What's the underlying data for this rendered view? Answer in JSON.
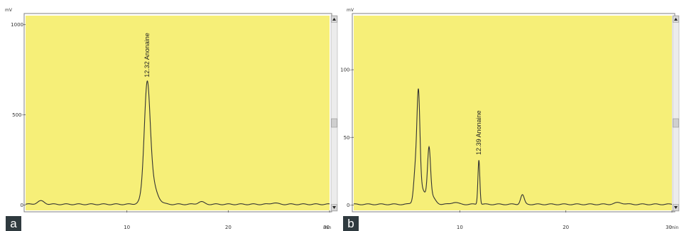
{
  "chart_data": [
    {
      "type": "line",
      "panel_label": "a",
      "y_unit": "mV",
      "x_unit": "min",
      "xlim": [
        0,
        30
      ],
      "ylim": [
        -30,
        1050
      ],
      "x_ticks": [
        {
          "value": 10,
          "label": "10"
        },
        {
          "value": 20,
          "label": "20"
        },
        {
          "value": 30,
          "label": "30"
        }
      ],
      "y_ticks": [
        {
          "value": 0,
          "label": "0"
        },
        {
          "value": 500,
          "label": "500-"
        },
        {
          "value": 1000,
          "label": "1000"
        }
      ],
      "baseline": 4,
      "peaks": [
        {
          "t": 1.5,
          "h": 18,
          "w": 0.35
        },
        {
          "t": 12.0,
          "h": 565,
          "w": 0.28
        },
        {
          "t": 12.3,
          "h": 140,
          "w": 0.55
        },
        {
          "t": 17.3,
          "h": 14,
          "w": 0.3
        },
        {
          "t": 24.5,
          "h": 8,
          "w": 0.3
        }
      ],
      "annotations": [
        {
          "x": 12.0,
          "y": 700,
          "text": "12.32 Anonaine"
        }
      ],
      "color": "#333333",
      "background": "#f6ef78"
    },
    {
      "type": "line",
      "panel_label": "b",
      "y_unit": "mV",
      "x_unit": "min",
      "xlim": [
        0,
        30
      ],
      "ylim": [
        -4,
        140
      ],
      "x_ticks": [
        {
          "value": 10,
          "label": "10"
        },
        {
          "value": 20,
          "label": "20"
        },
        {
          "value": 30,
          "label": "30"
        }
      ],
      "y_ticks": [
        {
          "value": 0,
          "label": "0-"
        },
        {
          "value": 50,
          "label": "50-"
        },
        {
          "value": 100,
          "label": "100-"
        }
      ],
      "baseline": 0.5,
      "peaks": [
        {
          "t": 5.8,
          "h": 20,
          "w": 0.15
        },
        {
          "t": 6.1,
          "h": 72,
          "w": 0.14
        },
        {
          "t": 6.3,
          "h": 12,
          "w": 0.4
        },
        {
          "t": 7.1,
          "h": 36,
          "w": 0.14
        },
        {
          "t": 7.3,
          "h": 6,
          "w": 0.35
        },
        {
          "t": 9.5,
          "h": 1.5,
          "w": 0.3
        },
        {
          "t": 11.8,
          "h": 33,
          "w": 0.09
        },
        {
          "t": 15.9,
          "h": 7,
          "w": 0.17
        },
        {
          "t": 25.0,
          "h": 1.2,
          "w": 0.4
        }
      ],
      "annotations": [
        {
          "x": 11.8,
          "y": 36,
          "text": "12.39 Anonaine"
        }
      ],
      "color": "#333333",
      "background": "#f6ef78"
    }
  ]
}
